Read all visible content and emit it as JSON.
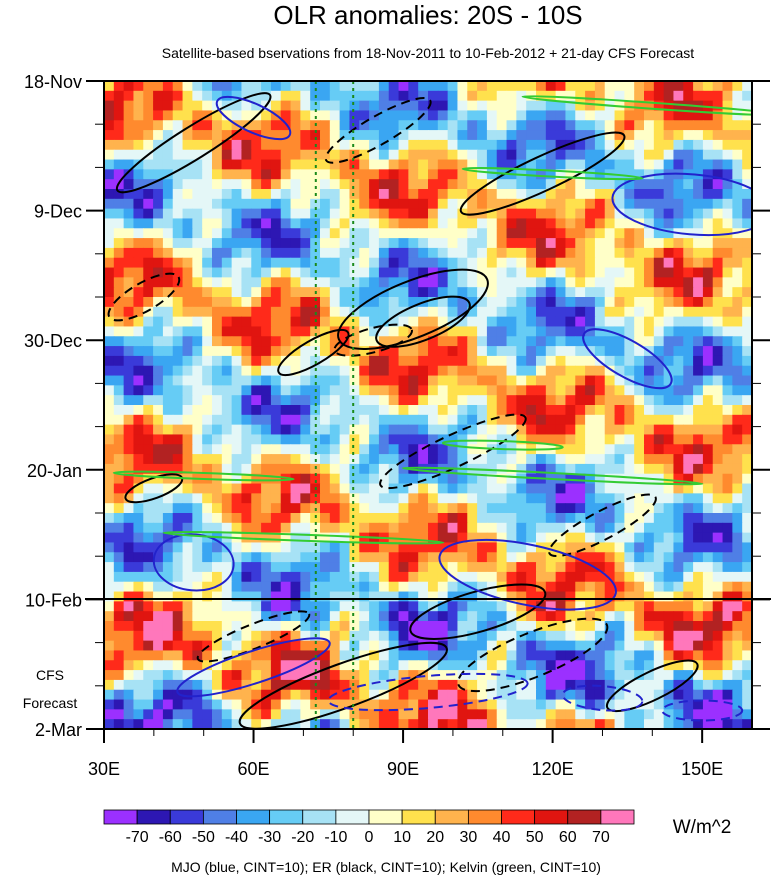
{
  "chart_data": {
    "type": "heatmap",
    "title": "OLR anomalies: 20S - 10S",
    "subtitle": "Satellite-based bservations from 18-Nov-2011 to 10-Feb-2012 + 21-day CFS Forecast",
    "x_axis": {
      "range": [
        30,
        160
      ],
      "ticks": [
        30,
        60,
        90,
        120,
        150
      ],
      "tick_labels": [
        "30E",
        "60E",
        "90E",
        "120E",
        "150E"
      ]
    },
    "y_axis": {
      "direction": "time increasing downward",
      "ticks": [
        "18-Nov",
        "9-Dec",
        "30-Dec",
        "20-Jan",
        "10-Feb",
        "2-Mar"
      ],
      "observation_end": "10-Feb",
      "forecast_label_line1": "CFS",
      "forecast_label_line2": "Forecast"
    },
    "reference_longitudes": [
      72.5,
      80
    ],
    "colorbar": {
      "units": "W/m^2",
      "labels": [
        "-70",
        "-60",
        "-50",
        "-40",
        "-30",
        "-20",
        "-10",
        "0",
        "10",
        "20",
        "30",
        "40",
        "50",
        "60",
        "70"
      ],
      "colors": [
        "#9b30ff",
        "#2d17b3",
        "#3a3ad9",
        "#4f7fe6",
        "#3aa6f2",
        "#66ccf5",
        "#a7e2f5",
        "#e4f7f7",
        "#ffffc8",
        "#ffe14d",
        "#ffb34d",
        "#ff8a2e",
        "#ff2a1a",
        "#e01510",
        "#b22222",
        "#ff77bb"
      ]
    },
    "contours": {
      "MJO": {
        "color": "#2222cc",
        "cint": 10
      },
      "ER": {
        "color": "#000000",
        "cint": 10
      },
      "Kelvin": {
        "color": "#33cc33",
        "cint": 10
      }
    },
    "legend_text": "MJO (blue, CINT=10); ER (black, CINT=10); Kelvin (green, CINT=10)"
  }
}
